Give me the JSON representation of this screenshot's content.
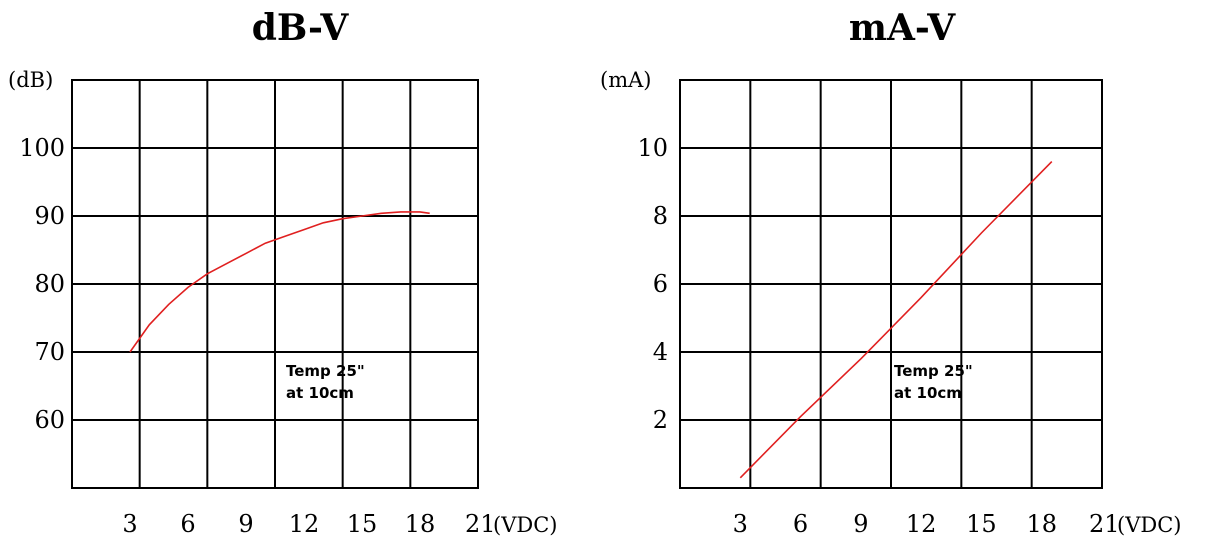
{
  "colors": {
    "curve": "#e02020",
    "grid": "#000000"
  },
  "chart_data": [
    {
      "type": "line",
      "title": "dB-V",
      "ylabel": "(dB)",
      "xlabel": "(VDC)",
      "y_ticks": [
        100,
        90,
        80,
        70,
        60
      ],
      "x_ticks": [
        3,
        6,
        9,
        12,
        15,
        18,
        21
      ],
      "annotation": [
        "Temp 25\"",
        "at 10cm"
      ],
      "xlim": [
        0,
        21
      ],
      "ylim": [
        50,
        110
      ],
      "series": [
        {
          "x": [
            3,
            4,
            5,
            6,
            7,
            8,
            9,
            10,
            11,
            12,
            13,
            14,
            15,
            16,
            17,
            18,
            18.5
          ],
          "y": [
            70,
            74,
            77,
            79.5,
            81.5,
            83,
            84.5,
            86,
            87,
            88,
            89,
            89.6,
            90,
            90.4,
            90.6,
            90.6,
            90.4
          ]
        }
      ]
    },
    {
      "type": "line",
      "title": "mA-V",
      "ylabel": "(mA)",
      "xlabel": "(VDC)",
      "y_ticks": [
        10,
        8,
        6,
        4,
        2
      ],
      "x_ticks": [
        3,
        6,
        9,
        12,
        15,
        18,
        21
      ],
      "annotation": [
        "Temp 25\"",
        "at 10cm"
      ],
      "xlim": [
        0,
        21
      ],
      "ylim": [
        0,
        12
      ],
      "series": [
        {
          "x": [
            3,
            6,
            9,
            12,
            15,
            18,
            18.5
          ],
          "y": [
            0.3,
            2.1,
            3.8,
            5.6,
            7.5,
            9.3,
            9.6
          ]
        }
      ]
    }
  ]
}
